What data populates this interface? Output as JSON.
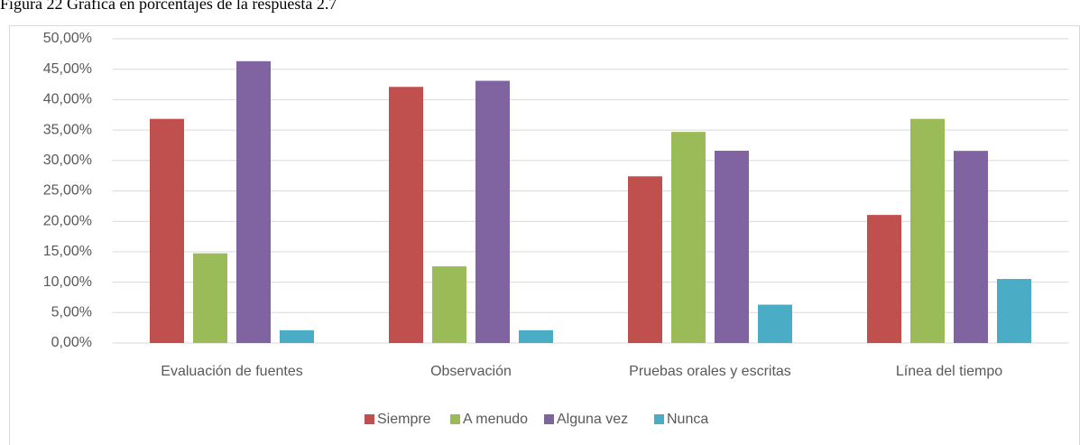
{
  "chart_data": {
    "type": "bar",
    "title": "Figura 22 Gráfica en porcentajes de la respuesta 2.7",
    "categories": [
      "Evaluación de fuentes",
      "Observación",
      "Pruebas orales y escritas",
      "Línea del tiempo"
    ],
    "series": [
      {
        "name": "Siempre",
        "color": "#c0504d",
        "values": [
          36.84,
          42.1,
          27.4,
          21.05
        ]
      },
      {
        "name": "A menudo",
        "color": "#9bbb59",
        "values": [
          14.74,
          12.6,
          34.7,
          36.84
        ]
      },
      {
        "name": "Alguna vez",
        "color": "#8064a2",
        "values": [
          46.32,
          43.1,
          31.6,
          31.58
        ]
      },
      {
        "name": "Nunca",
        "color": "#4bacc6",
        "values": [
          2.1,
          2.1,
          6.3,
          10.53
        ]
      }
    ],
    "ylim": [
      0,
      50
    ],
    "yticks": [
      {
        "value": 0,
        "label": "0,00%"
      },
      {
        "value": 5,
        "label": "5,00%"
      },
      {
        "value": 10,
        "label": "10,00%"
      },
      {
        "value": 15,
        "label": "15,00%"
      },
      {
        "value": 20,
        "label": "20,00%"
      },
      {
        "value": 25,
        "label": "25,00%"
      },
      {
        "value": 30,
        "label": "30,00%"
      },
      {
        "value": 35,
        "label": "35,00%"
      },
      {
        "value": 40,
        "label": "40,00%"
      },
      {
        "value": 45,
        "label": "45,00%"
      },
      {
        "value": 50,
        "label": "50,00%"
      }
    ],
    "grid": true,
    "legend": "bottom"
  }
}
